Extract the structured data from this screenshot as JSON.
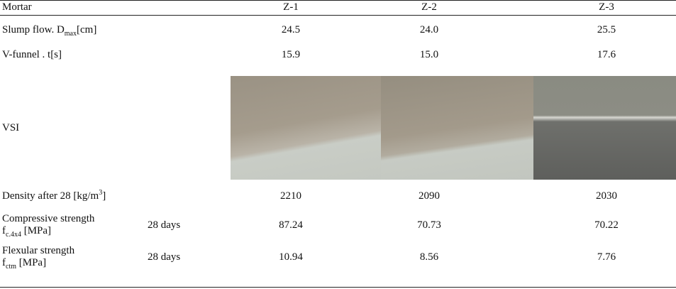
{
  "header": [
    "Mortar",
    "Z-1",
    "Z-2",
    "Z-3"
  ],
  "rows": [
    {
      "label": [
        [
          {
            "t": "Slump flow.  D"
          },
          {
            "sub": "max"
          },
          {
            "t": "[cm]"
          }
        ]
      ],
      "values": [
        "24.5",
        "24.0",
        "25.5"
      ]
    },
    {
      "label": [
        [
          {
            "t": "V-funnel . t[s]"
          }
        ]
      ],
      "values": [
        "15.9",
        "15.0",
        "17.6"
      ]
    },
    {
      "label": [
        [
          {
            "t": "VSI"
          }
        ]
      ]
    },
    {
      "label": [
        [
          {
            "t": "Density after 28 [kg/m"
          },
          {
            "sup": "3"
          },
          {
            "t": "]"
          }
        ]
      ],
      "values": [
        "2210",
        "2090",
        "2030"
      ]
    },
    {
      "label": [
        [
          {
            "t": "Compressive strength"
          }
        ],
        [
          {
            "t": "f"
          },
          {
            "sub": "c.4x4"
          },
          {
            "t": " [MPa]"
          }
        ]
      ],
      "age": "28 days",
      "values": [
        "87.24",
        "70.73",
        "70.22"
      ]
    },
    {
      "label": [
        [
          {
            "t": "Flexular strength"
          }
        ],
        [
          {
            "t": "f"
          },
          {
            "sub": "ctm"
          },
          {
            "t": " [MPa]"
          }
        ]
      ],
      "age": "28 days",
      "values": [
        "10.94",
        "8.56",
        "7.76"
      ]
    }
  ]
}
